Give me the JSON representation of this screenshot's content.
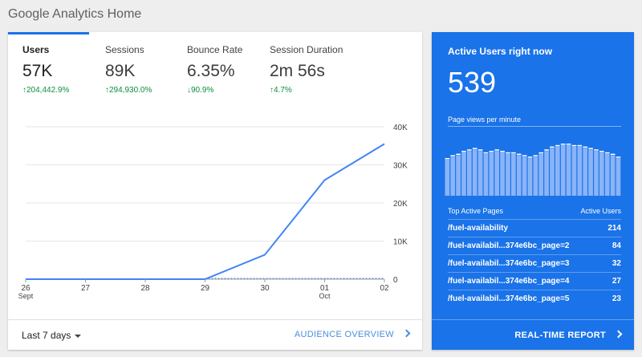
{
  "header": {
    "title": "Google Analytics Home"
  },
  "metrics": [
    {
      "label": "Users",
      "value": "57K",
      "change": "204,442.9%",
      "direction": "up",
      "active": true
    },
    {
      "label": "Sessions",
      "value": "89K",
      "change": "294,930.0%",
      "direction": "up",
      "active": false
    },
    {
      "label": "Bounce Rate",
      "value": "6.35%",
      "change": "90.9%",
      "direction": "down",
      "active": false
    },
    {
      "label": "Session Duration",
      "value": "2m 56s",
      "change": "4.7%",
      "direction": "up",
      "active": false
    }
  ],
  "chart_data": {
    "type": "line",
    "x": [
      "26 Sept",
      "27",
      "28",
      "29",
      "30",
      "01 Oct",
      "02"
    ],
    "series": [
      {
        "values": [
          0,
          0,
          0,
          0,
          6400,
          26000,
          35500
        ]
      }
    ],
    "yticks": [
      "40K",
      "30K",
      "20K",
      "10K",
      "0"
    ],
    "xtick_labels": [
      {
        "top": "26",
        "bottom": "Sept"
      },
      {
        "top": "27",
        "bottom": ""
      },
      {
        "top": "28",
        "bottom": ""
      },
      {
        "top": "29",
        "bottom": ""
      },
      {
        "top": "30",
        "bottom": ""
      },
      {
        "top": "01",
        "bottom": "Oct"
      },
      {
        "top": "02",
        "bottom": ""
      }
    ],
    "ylim": [
      0,
      40000
    ],
    "grid": true,
    "line_color": "#4285f4"
  },
  "footer": {
    "range_label": "Last 7 days",
    "overview_link": "AUDIENCE OVERVIEW"
  },
  "realtime": {
    "title": "Active Users right now",
    "count": "539",
    "pageviews_label": "Page views per minute",
    "pageviews_bars": [
      25,
      27,
      28,
      30,
      31,
      32,
      31,
      29,
      30,
      31,
      30,
      29,
      29,
      28,
      27,
      26,
      27,
      29,
      31,
      33,
      34,
      35,
      35,
      34,
      34,
      33,
      32,
      31,
      30,
      29,
      28,
      26
    ],
    "pages_header": {
      "left": "Top Active Pages",
      "right": "Active Users"
    },
    "pages": [
      {
        "path": "/fuel-availability",
        "users": "214"
      },
      {
        "path": "/fuel-availabil...374e6bc_page=2",
        "users": "84"
      },
      {
        "path": "/fuel-availabil...374e6bc_page=3",
        "users": "32"
      },
      {
        "path": "/fuel-availabil...374e6bc_page=4",
        "users": "27"
      },
      {
        "path": "/fuel-availabil...374e6bc_page=5",
        "users": "23"
      }
    ],
    "report_link": "REAL-TIME REPORT"
  },
  "colors": {
    "accent": "#1a73e8",
    "positive": "#0c8f3d"
  }
}
